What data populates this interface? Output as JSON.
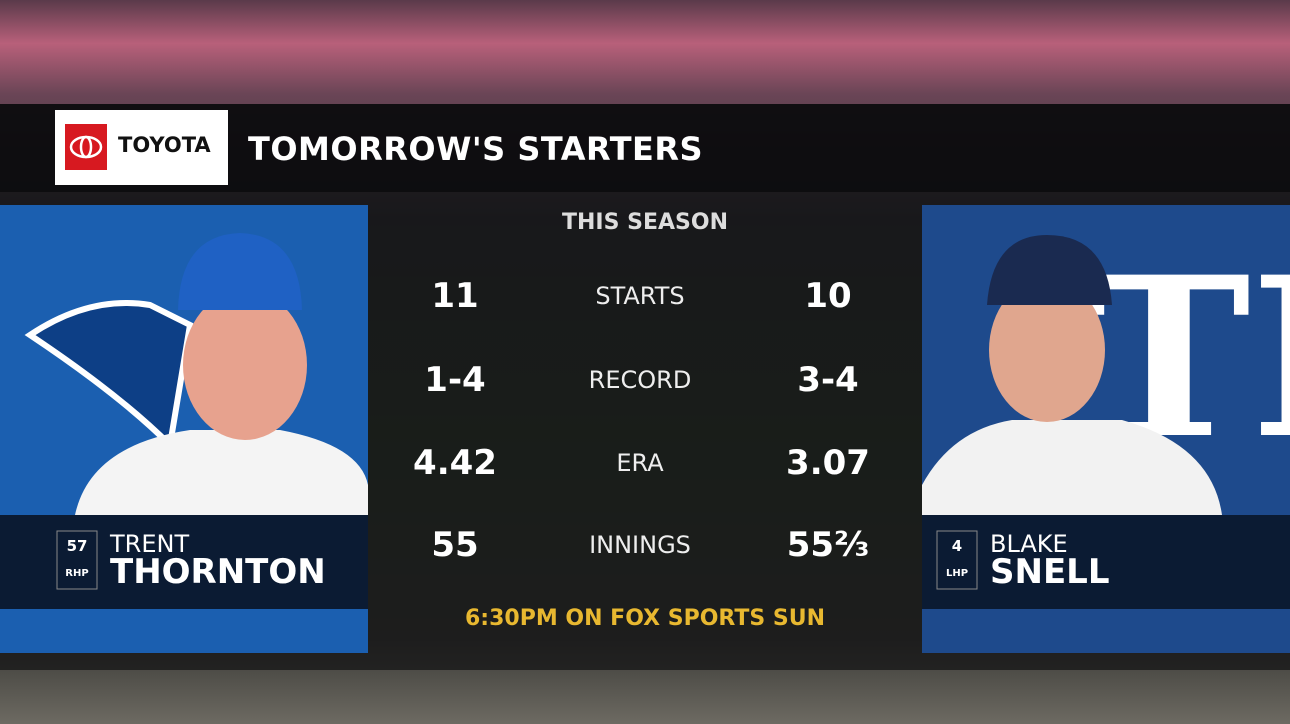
{
  "sponsor": "TOYOTA",
  "title": "TOMORROW'S STARTERS",
  "subtitle": "THIS SEASON",
  "players": [
    {
      "number": "57",
      "position": "RHP",
      "first_name": "TRENT",
      "last_name": "THORNTON"
    },
    {
      "number": "4",
      "position": "LHP",
      "first_name": "BLAKE",
      "last_name": "SNELL"
    }
  ],
  "stats": [
    {
      "label": "STARTS",
      "left": "11",
      "right": "10"
    },
    {
      "label": "RECORD",
      "left": "1-4",
      "right": "3-4"
    },
    {
      "label": "ERA",
      "left": "4.42",
      "right": "3.07"
    },
    {
      "label": "INNINGS",
      "left": "55",
      "right": "55⅔"
    }
  ],
  "footer": "6:30PM ON FOX SPORTS SUN"
}
